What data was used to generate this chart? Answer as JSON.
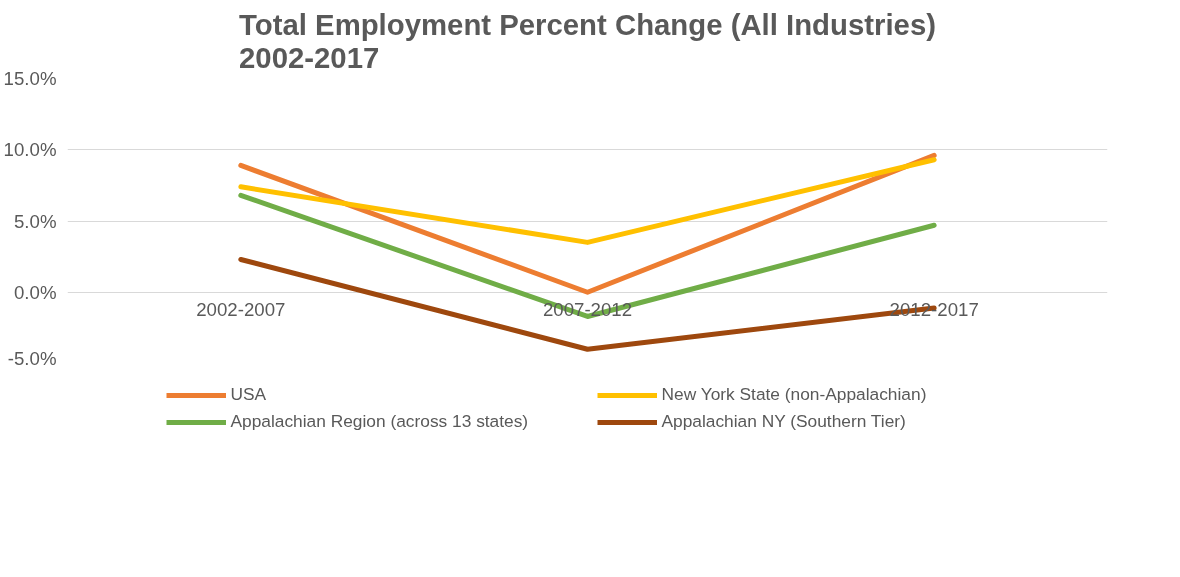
{
  "chart_data": {
    "type": "line",
    "title": "Total Employment Percent Change (All Industries)\n2002-2017",
    "categories": [
      "2002-2007",
      "2007-2012",
      "2012-2017"
    ],
    "series": [
      {
        "name": "USA",
        "color": "#ed7d31",
        "values": [
          8.9,
          0.0,
          9.6
        ]
      },
      {
        "name": "New York State (non-Appalachian)",
        "color": "#ffc000",
        "values": [
          7.4,
          3.5,
          9.3
        ]
      },
      {
        "name": "Appalachian Region (across 13 states)",
        "color": "#70ad47",
        "values": [
          6.8,
          -1.7,
          4.7
        ]
      },
      {
        "name": "Appalachian NY (Southern Tier)",
        "color": "#9e480e",
        "values": [
          2.3,
          -4.0,
          -1.1
        ]
      }
    ],
    "ylim": [
      -5,
      15
    ],
    "yticks": [
      {
        "value": -5,
        "label": "-5.0%"
      },
      {
        "value": 0,
        "label": "0.0%"
      },
      {
        "value": 5,
        "label": "5.0%"
      },
      {
        "value": 10,
        "label": "10.0%"
      },
      {
        "value": 15,
        "label": "15.0%"
      }
    ],
    "grid": "y",
    "legend": "bottom",
    "marker": "none",
    "line_style": "solid"
  }
}
